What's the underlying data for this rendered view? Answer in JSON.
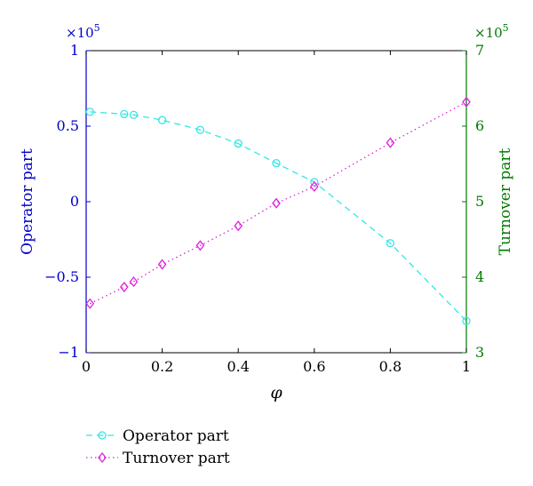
{
  "chart_data": {
    "type": "line",
    "xlabel": "φ",
    "x_ticks": [
      "0",
      "0.2",
      "0.4",
      "0.6",
      "0.8",
      "1"
    ],
    "xlim": [
      0,
      1
    ],
    "left_axis": {
      "label": "Operator part",
      "multiplier": "×10",
      "exponent": "5",
      "ylim": [
        -1,
        1
      ],
      "ticks": [
        {
          "value": 1,
          "label": "1"
        },
        {
          "value": 0.5,
          "label": "0.5"
        },
        {
          "value": 0,
          "label": "0"
        },
        {
          "value": -0.5,
          "label": "−0.5"
        },
        {
          "value": -1,
          "label": "−1"
        }
      ],
      "color": "#0000cc"
    },
    "right_axis": {
      "label": "Turnover part",
      "multiplier": "×10",
      "exponent": "5",
      "ylim": [
        3,
        7
      ],
      "ticks": [
        {
          "value": 7,
          "label": "7"
        },
        {
          "value": 6,
          "label": "6"
        },
        {
          "value": 5,
          "label": "5"
        },
        {
          "value": 4,
          "label": "4"
        },
        {
          "value": 3,
          "label": "3"
        }
      ],
      "color": "#007a00"
    },
    "grid": false,
    "legend": "bottom-left, below plot",
    "series": [
      {
        "name": "Operator part",
        "axis": "left",
        "color": "#33e6e6",
        "line_style": "dashed",
        "marker": "circle",
        "x": [
          0.01,
          0.1,
          0.125,
          0.2,
          0.3,
          0.4,
          0.5,
          0.6,
          0.8,
          1.0
        ],
        "y": [
          0.595,
          0.58,
          0.575,
          0.54,
          0.475,
          0.385,
          0.255,
          0.13,
          -0.275,
          -0.79
        ]
      },
      {
        "name": "Turnover part",
        "axis": "right",
        "color": "#dd22dd",
        "line_style": "dotted",
        "marker": "diamond",
        "x": [
          0.01,
          0.1,
          0.125,
          0.2,
          0.3,
          0.4,
          0.5,
          0.6,
          0.8,
          1.0
        ],
        "y": [
          3.65,
          3.87,
          3.94,
          4.17,
          4.42,
          4.68,
          4.98,
          5.2,
          5.78,
          6.32
        ]
      }
    ]
  }
}
